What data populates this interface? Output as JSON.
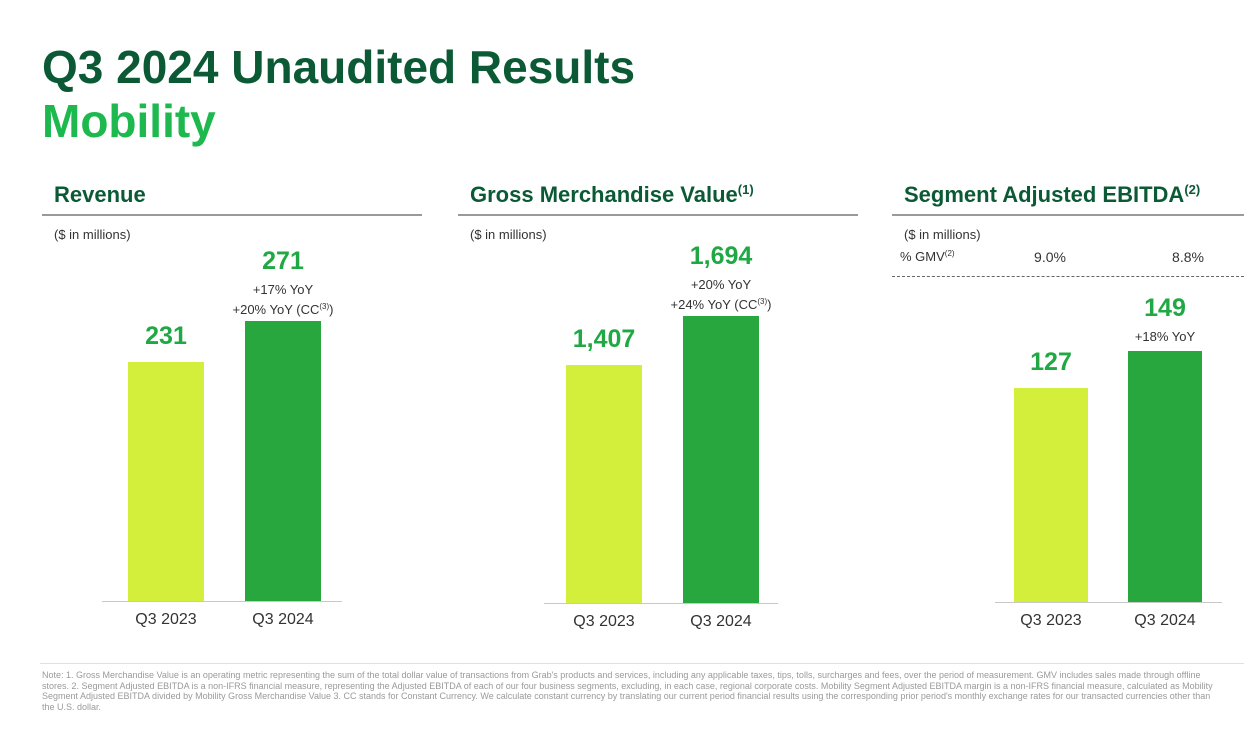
{
  "header": {
    "title": "Q3 2024 Unaudited Results",
    "subtitle": "Mobility"
  },
  "colors": {
    "dark_green": "#0b5a35",
    "green": "#1db84e",
    "bar_2023": "#d4ee3c",
    "bar_2024": "#27a73d"
  },
  "chart_data": [
    {
      "type": "bar",
      "title": "Revenue",
      "title_sup": "",
      "units": "($ in millions)",
      "categories": [
        "Q3 2023",
        "Q3 2024"
      ],
      "values": [
        231,
        271
      ],
      "value_labels": [
        "231",
        "271"
      ],
      "annotations": [
        [],
        [
          "+17% YoY",
          "+20% YoY (CC"
        ]
      ],
      "ylim": [
        0,
        271
      ]
    },
    {
      "type": "bar",
      "title": "Gross Merchandise Value",
      "title_sup": "(1)",
      "units": "($ in millions)",
      "categories": [
        "Q3 2023",
        "Q3 2024"
      ],
      "values": [
        1407,
        1694
      ],
      "value_labels": [
        "1,407",
        "1,694"
      ],
      "annotations": [
        [],
        [
          "+20% YoY",
          "+24% YoY (CC"
        ]
      ],
      "ylim": [
        0,
        1694
      ]
    },
    {
      "type": "bar",
      "title": "Segment Adjusted EBITDA",
      "title_sup": "(2)",
      "units": "($ in millions)",
      "margin_label": "% GMV",
      "margin_sup": "(2)",
      "margins": [
        "9.0%",
        "8.8%"
      ],
      "categories": [
        "Q3 2023",
        "Q3 2024"
      ],
      "values": [
        127,
        149
      ],
      "value_labels": [
        "127",
        "149"
      ],
      "annotations": [
        [],
        [
          "+18% YoY"
        ]
      ],
      "ylim": [
        0,
        149
      ]
    }
  ],
  "footnote": {
    "cc_sup": "(3)",
    "close_paren": ")",
    "text": "Note: 1. Gross Merchandise Value is an operating metric representing the sum of the total dollar value of transactions from Grab's products and services, including any applicable taxes, tips, tolls, surcharges and fees, over the period of measurement. GMV includes sales made through offline stores. 2. Segment Adjusted EBITDA is a non-IFRS financial measure, representing the Adjusted EBITDA of each of our four business segments, excluding, in each case, regional corporate costs. Mobility Segment Adjusted EBITDA margin is a non-IFRS financial measure, calculated as Mobility Segment Adjusted EBITDA divided by Mobility Gross Merchandise Value 3. CC stands for Constant Currency. We calculate constant currency by translating our current period financial results using the corresponding prior period's monthly exchange rates for our transacted currencies other than the U.S. dollar."
  }
}
